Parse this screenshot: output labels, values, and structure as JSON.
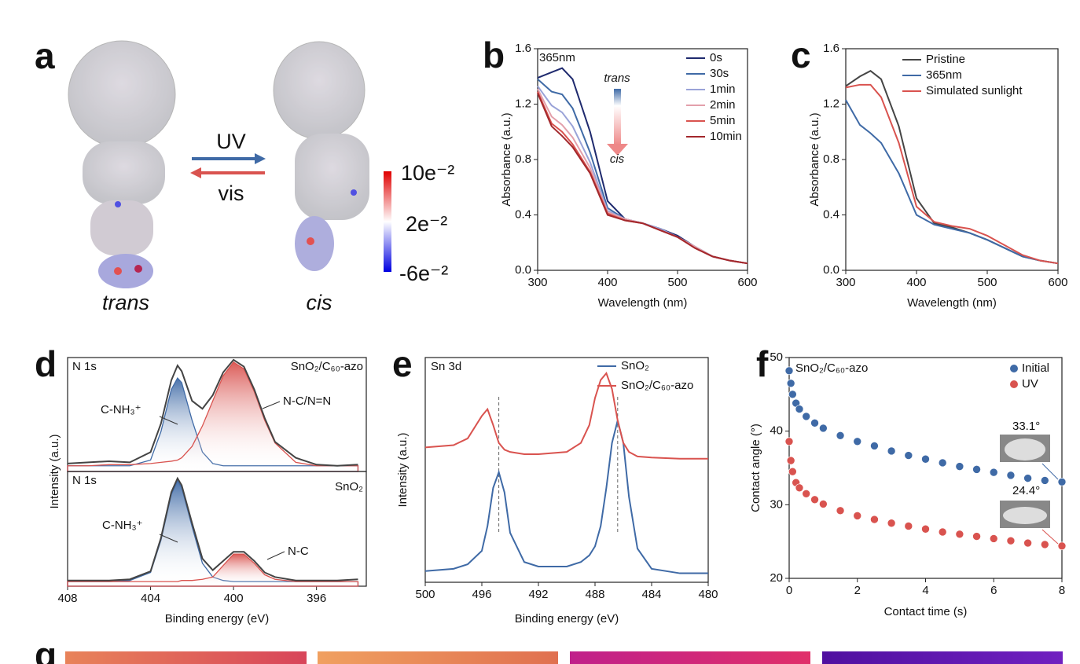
{
  "figure": {
    "panel_a": {
      "label": "a",
      "forward": "UV",
      "backward": "vis",
      "left_caption": "trans",
      "right_caption": "cis",
      "colorbar_labels": [
        "10e⁻²",
        "2e⁻²",
        "-6e⁻²"
      ]
    },
    "panel_g": {
      "label": "g"
    }
  },
  "chart_data": [
    {
      "type": "line",
      "panel_label": "b",
      "xlabel": "Wavelength (nm)",
      "ylabel": "Absorbance (a.u.)",
      "x": [
        300,
        320,
        335,
        350,
        375,
        400,
        425,
        450,
        475,
        500,
        525,
        550,
        575,
        600
      ],
      "xlim": [
        300,
        600
      ],
      "xticks": [
        300,
        400,
        500,
        600
      ],
      "ylim": [
        0,
        1.6
      ],
      "yticks": [
        {
          "value": 0,
          "label": "0.0"
        },
        0.4,
        0.8,
        1.2,
        1.6
      ],
      "annotations": [
        "365nm",
        "trans",
        "cis"
      ],
      "series": [
        {
          "name": "0s",
          "color": "#1f2a6e",
          "values": [
            1.39,
            1.43,
            1.46,
            1.38,
            1.0,
            0.5,
            0.37,
            0.34,
            0.3,
            0.25,
            0.17,
            0.1,
            0.07,
            0.05
          ]
        },
        {
          "name": "30s",
          "color": "#3f6aa6",
          "values": [
            1.38,
            1.29,
            1.27,
            1.17,
            0.85,
            0.45,
            0.37,
            0.34,
            0.3,
            0.24,
            0.17,
            0.1,
            0.07,
            0.05
          ]
        },
        {
          "name": "1min",
          "color": "#9aa3d8",
          "values": [
            1.33,
            1.19,
            1.14,
            1.04,
            0.78,
            0.43,
            0.37,
            0.34,
            0.3,
            0.24,
            0.17,
            0.1,
            0.07,
            0.05
          ]
        },
        {
          "name": "2min",
          "color": "#e3a0ab",
          "values": [
            1.31,
            1.11,
            1.05,
            0.96,
            0.74,
            0.42,
            0.37,
            0.34,
            0.29,
            0.24,
            0.17,
            0.1,
            0.07,
            0.05
          ]
        },
        {
          "name": "5min",
          "color": "#d9534f",
          "values": [
            1.29,
            1.06,
            1.0,
            0.91,
            0.71,
            0.41,
            0.36,
            0.34,
            0.29,
            0.24,
            0.16,
            0.1,
            0.07,
            0.05
          ]
        },
        {
          "name": "10min",
          "color": "#a3282c",
          "values": [
            1.28,
            1.04,
            0.97,
            0.89,
            0.7,
            0.4,
            0.36,
            0.34,
            0.29,
            0.24,
            0.16,
            0.1,
            0.07,
            0.05
          ]
        }
      ]
    },
    {
      "type": "line",
      "panel_label": "c",
      "xlabel": "Wavelength (nm)",
      "ylabel": "Absorbance (a.u.)",
      "x": [
        300,
        320,
        335,
        350,
        375,
        400,
        425,
        450,
        475,
        500,
        525,
        550,
        575,
        600
      ],
      "xlim": [
        300,
        600
      ],
      "xticks": [
        300,
        400,
        500,
        600
      ],
      "ylim": [
        0,
        1.6
      ],
      "yticks": [
        {
          "value": 0,
          "label": "0.0"
        },
        0.4,
        0.8,
        1.2,
        1.6
      ],
      "series": [
        {
          "name": "Pristine",
          "color": "#454545",
          "values": [
            1.33,
            1.4,
            1.44,
            1.38,
            1.04,
            0.52,
            0.34,
            0.31,
            0.27,
            0.22,
            0.16,
            0.1,
            0.07,
            0.05
          ]
        },
        {
          "name": "365nm",
          "color": "#3f6aa6",
          "values": [
            1.23,
            1.05,
            0.99,
            0.92,
            0.7,
            0.4,
            0.33,
            0.3,
            0.27,
            0.22,
            0.16,
            0.1,
            0.07,
            0.05
          ]
        },
        {
          "name": "Simulated sunlight",
          "color": "#d9534f",
          "values": [
            1.32,
            1.34,
            1.34,
            1.25,
            0.92,
            0.46,
            0.35,
            0.32,
            0.3,
            0.25,
            0.18,
            0.11,
            0.07,
            0.05
          ]
        }
      ]
    },
    {
      "type": "line",
      "panel_label": "d",
      "ylabel": "Intensity (a.u.)",
      "x": [
        408,
        407,
        406,
        405,
        404,
        403.5,
        403,
        402.7,
        402.5,
        402,
        401.5,
        401,
        400.5,
        400,
        399.5,
        399,
        398.5,
        398,
        397,
        396,
        395,
        394
      ],
      "xlim": [
        408,
        393.6
      ],
      "ylim": [
        0,
        1
      ],
      "annotations": [
        "N 1s",
        "SnO₂/C₆₀-azo",
        "C-NH₃⁺",
        "N-C/N=N"
      ],
      "series": [
        {
          "color": "#3f6aa6",
          "fill": true,
          "values": [
            0.05,
            0.05,
            0.05,
            0.05,
            0.1,
            0.35,
            0.72,
            0.82,
            0.78,
            0.45,
            0.17,
            0.07,
            0.05,
            0.05,
            0.05,
            0.05,
            0.05,
            0.05,
            0.05,
            0.05,
            0.05,
            0.05
          ]
        },
        {
          "color": "#d9534f",
          "fill": true,
          "values": [
            0.05,
            0.05,
            0.06,
            0.06,
            0.07,
            0.08,
            0.09,
            0.1,
            0.12,
            0.22,
            0.4,
            0.62,
            0.84,
            0.96,
            0.9,
            0.7,
            0.45,
            0.25,
            0.08,
            0.05,
            0.05,
            0.05
          ]
        },
        {
          "color": "#444444",
          "values": [
            0.07,
            0.08,
            0.09,
            0.08,
            0.17,
            0.42,
            0.8,
            0.93,
            0.88,
            0.62,
            0.55,
            0.67,
            0.87,
            0.98,
            0.92,
            0.72,
            0.47,
            0.26,
            0.12,
            0.06,
            0.05,
            0.06
          ]
        }
      ]
    },
    {
      "type": "line",
      "xlabel": "Binding energy (eV)",
      "x": [
        408,
        407,
        406,
        405,
        404,
        403.5,
        403,
        402.7,
        402.5,
        402,
        401.5,
        401,
        400.5,
        400,
        399.5,
        399,
        398.5,
        398,
        397,
        396,
        395,
        394
      ],
      "xlim": [
        408,
        393.6
      ],
      "xticks": [
        408,
        404,
        400,
        396
      ],
      "ylim": [
        0,
        1
      ],
      "annotations": [
        "N 1s",
        "SnO₂",
        "C-NH₃⁺",
        "N-C"
      ],
      "series": [
        {
          "color": "#3f6aa6",
          "fill": true,
          "values": [
            0.04,
            0.04,
            0.04,
            0.05,
            0.12,
            0.4,
            0.8,
            0.92,
            0.86,
            0.52,
            0.2,
            0.08,
            0.05,
            0.04,
            0.04,
            0.04,
            0.04,
            0.04,
            0.04,
            0.04,
            0.04,
            0.04
          ]
        },
        {
          "color": "#d9534f",
          "fill": true,
          "values": [
            0.04,
            0.04,
            0.04,
            0.04,
            0.04,
            0.04,
            0.04,
            0.04,
            0.05,
            0.05,
            0.06,
            0.08,
            0.18,
            0.28,
            0.28,
            0.2,
            0.1,
            0.06,
            0.04,
            0.04,
            0.04,
            0.04
          ]
        },
        {
          "color": "#444444",
          "values": [
            0.05,
            0.05,
            0.05,
            0.06,
            0.13,
            0.42,
            0.82,
            0.94,
            0.88,
            0.55,
            0.24,
            0.14,
            0.22,
            0.3,
            0.3,
            0.22,
            0.12,
            0.08,
            0.05,
            0.05,
            0.05,
            0.06
          ]
        }
      ]
    },
    {
      "type": "line",
      "panel_label": "e",
      "xlabel": "Binding energy (eV)",
      "ylabel": "Intensity (a.u.)",
      "x": [
        500,
        498,
        497,
        496,
        495.6,
        495.2,
        494.8,
        494.4,
        494,
        493,
        492,
        490,
        489,
        488.4,
        488,
        487.6,
        487.2,
        486.8,
        486.4,
        486,
        485.6,
        485,
        484,
        482,
        480
      ],
      "xlim": [
        500,
        480
      ],
      "xticks": [
        500,
        496,
        492,
        488,
        484,
        480
      ],
      "ylim": [
        0,
        1
      ],
      "reference_lines": [
        494.8,
        486.4
      ],
      "annotations": [
        "Sn 3d"
      ],
      "series": [
        {
          "name": "SnO₂",
          "color": "#3f6aa6",
          "values": [
            0.05,
            0.06,
            0.08,
            0.14,
            0.25,
            0.42,
            0.49,
            0.4,
            0.22,
            0.09,
            0.07,
            0.07,
            0.09,
            0.12,
            0.16,
            0.25,
            0.42,
            0.62,
            0.72,
            0.62,
            0.38,
            0.15,
            0.06,
            0.04,
            0.04
          ]
        },
        {
          "name": "SnO₂/C₆₀-azo",
          "color": "#d9534f",
          "values": [
            0.6,
            0.61,
            0.64,
            0.74,
            0.77,
            0.7,
            0.62,
            0.59,
            0.58,
            0.57,
            0.57,
            0.58,
            0.62,
            0.7,
            0.82,
            0.9,
            0.93,
            0.86,
            0.72,
            0.62,
            0.58,
            0.56,
            0.555,
            0.55,
            0.55
          ]
        }
      ]
    },
    {
      "type": "scatter",
      "panel_label": "f",
      "xlabel": "Contact time (s)",
      "ylabel": "Contact angle (°)",
      "x": [
        0,
        0.05,
        0.1,
        0.2,
        0.3,
        0.5,
        0.75,
        1,
        1.5,
        2,
        2.5,
        3,
        3.5,
        4,
        4.5,
        5,
        5.5,
        6,
        6.5,
        7,
        7.5,
        8
      ],
      "xlim": [
        0,
        8
      ],
      "xticks": [
        0,
        2,
        4,
        6,
        8
      ],
      "ylim": [
        20,
        50
      ],
      "yticks": [
        20,
        30,
        40,
        50
      ],
      "annotations": [
        "SnO₂/C₆₀-azo",
        "33.1°",
        "24.4°"
      ],
      "series": [
        {
          "name": "Initial",
          "color": "#3f6aa6",
          "values": [
            48.2,
            46.5,
            45,
            43.8,
            43,
            42,
            41.1,
            40.4,
            39.4,
            38.6,
            38,
            37.3,
            36.7,
            36.2,
            35.7,
            35.2,
            34.8,
            34.4,
            34,
            33.6,
            33.3,
            33.1
          ]
        },
        {
          "name": "UV",
          "color": "#d9534f",
          "values": [
            38.6,
            36,
            34.5,
            33,
            32.3,
            31.5,
            30.7,
            30.1,
            29.2,
            28.5,
            28,
            27.5,
            27.1,
            26.7,
            26.3,
            26,
            25.7,
            25.4,
            25.1,
            24.8,
            24.6,
            24.4
          ]
        }
      ]
    }
  ]
}
